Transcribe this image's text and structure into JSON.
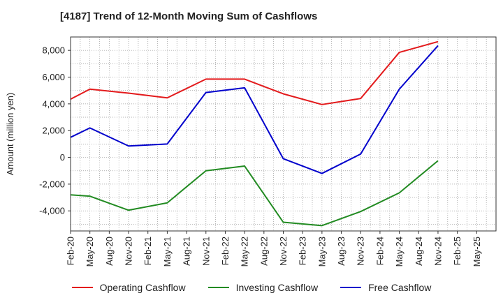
{
  "chart_data": {
    "type": "line",
    "title": "[4187]  Trend of 12-Month Moving Sum of Cashflows",
    "xlabel": "",
    "ylabel": "Amount (million yen)",
    "ylim": [
      -5500,
      9000
    ],
    "yticks": [
      -4000,
      -2000,
      0,
      2000,
      4000,
      6000,
      8000
    ],
    "ytick_labels": [
      "-4,000",
      "-2,000",
      "0",
      "2,000",
      "4,000",
      "6,000",
      "8,000"
    ],
    "categories": [
      "Feb-20",
      "May-20",
      "Aug-20",
      "Nov-20",
      "Feb-21",
      "May-21",
      "Aug-21",
      "Nov-21",
      "Feb-22",
      "May-22",
      "Aug-22",
      "Nov-22",
      "Feb-23",
      "May-23",
      "Aug-23",
      "Nov-23",
      "Feb-24",
      "May-24",
      "Aug-24",
      "Nov-24",
      "Feb-25",
      "May-25"
    ],
    "grid": true,
    "legend_position": "bottom",
    "series": [
      {
        "name": "Operating Cashflow",
        "color": "#e31a1c",
        "values": [
          4350,
          5100,
          null,
          4800,
          null,
          4450,
          null,
          5850,
          null,
          5850,
          null,
          4750,
          null,
          3950,
          null,
          4400,
          null,
          7850,
          null,
          8650,
          null,
          null
        ]
      },
      {
        "name": "Investing Cashflow",
        "color": "#228b22",
        "values": [
          -2800,
          -2900,
          null,
          -3950,
          null,
          -3400,
          null,
          -1000,
          null,
          -650,
          null,
          -4850,
          null,
          -5100,
          null,
          -4050,
          null,
          -2650,
          null,
          -250,
          null,
          null
        ]
      },
      {
        "name": "Free Cashflow",
        "color": "#0000cc",
        "values": [
          1500,
          2200,
          null,
          850,
          null,
          1000,
          null,
          4850,
          null,
          5200,
          null,
          -100,
          null,
          -1200,
          null,
          250,
          null,
          5100,
          null,
          8350,
          null,
          null
        ]
      }
    ]
  }
}
